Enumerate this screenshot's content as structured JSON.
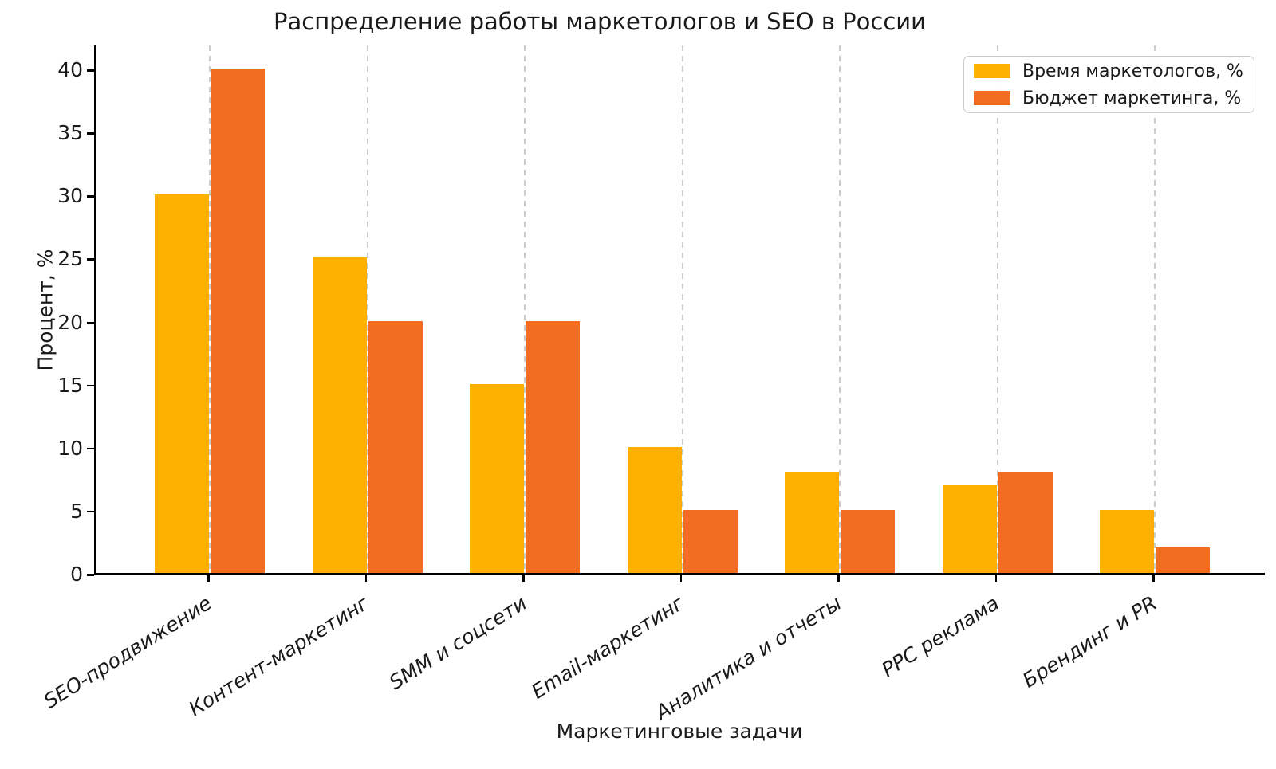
{
  "chart_data": {
    "type": "bar",
    "title": "Распределение работы маркетологов и SEO в России",
    "xlabel": "Маркетинговые задачи",
    "ylabel": "Процент, %",
    "categories": [
      "SEO-продвижение",
      "Контент-маркетинг",
      "SMM и соцсети",
      "Email-маркетинг",
      "Аналитика и отчеты",
      "PPC реклама",
      "Брендинг и PR"
    ],
    "series": [
      {
        "name": "Время маркетологов, %",
        "color": "#FFB000",
        "values": [
          30,
          25,
          15,
          10,
          8,
          7,
          5
        ]
      },
      {
        "name": "Бюджет маркетинга, %",
        "color": "#F26C21",
        "values": [
          40,
          20,
          20,
          5,
          5,
          8,
          2
        ]
      }
    ],
    "ylim": [
      0,
      40
    ],
    "yticks": [
      0,
      5,
      10,
      15,
      20,
      25,
      30,
      35,
      40
    ],
    "grid": "vertical-dashed",
    "legend_position": "upper-right",
    "colors": {
      "text": "#1a1a1a",
      "grid": "#cccccc",
      "axis": "#000000",
      "background": "#ffffff"
    }
  }
}
